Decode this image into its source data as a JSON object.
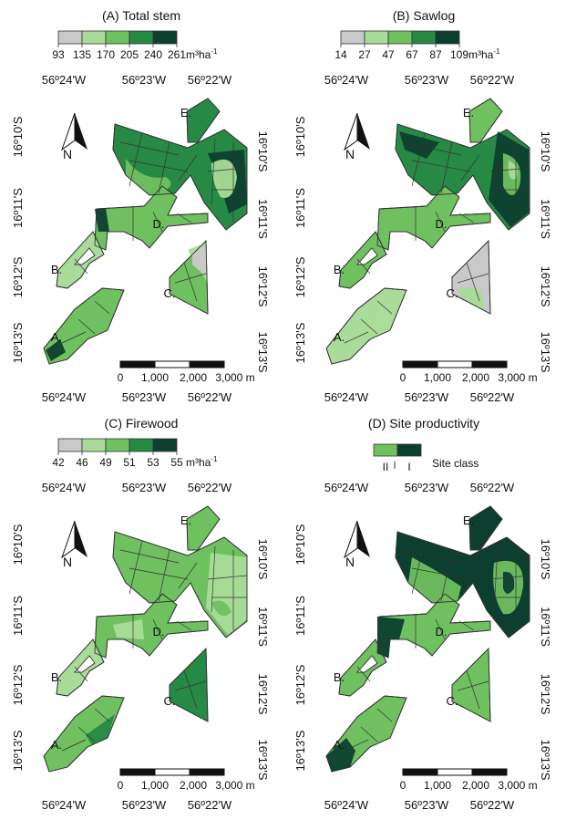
{
  "colors": {
    "c1": "#c9c9c9",
    "c2": "#a9dc98",
    "c3": "#6fc05f",
    "c4": "#268a45",
    "c5": "#0c3f2f",
    "line": "#333333"
  },
  "unit_main": "m³ha",
  "unit_sup": "-1",
  "scalebar": {
    "labels": [
      "0",
      "1,000",
      "2,000",
      "3,000 m"
    ]
  },
  "north_label": "N",
  "stand_labels": [
    "A.",
    "B.",
    "C.",
    "D.",
    "E."
  ],
  "panels": [
    {
      "title": "(A) Total stem",
      "legend_values": [
        "93",
        "135",
        "170",
        "205",
        "240",
        "261"
      ],
      "legend_type": "continuous",
      "lon_top": [
        "56º24'W",
        "56º23'W",
        "56º22'W"
      ],
      "lon_bottom": [
        "56º24'W",
        "56º23'W",
        "56º22'W"
      ],
      "lat_left": [
        "16º10'S",
        "16º11'S",
        "16º12'S",
        "16º13'S"
      ],
      "lat_right": [
        "16º10'S",
        "16º11'S",
        "16º12'S",
        "16º13'S"
      ]
    },
    {
      "title": "(B) Sawlog",
      "legend_values": [
        "14",
        "27",
        "47",
        "67",
        "87",
        "109"
      ],
      "legend_type": "continuous",
      "lon_top": [
        "56º24'W",
        "56º23'W",
        "56º22'W"
      ],
      "lon_bottom": [
        "56º24'W",
        "56º23'W",
        "56º22'W"
      ],
      "lat_left": [
        "16º10'S",
        "16º11'S",
        "16º12'S",
        "16º13'S"
      ],
      "lat_right": [
        "16º10'S",
        "16º11'S",
        "16º12'S",
        "16º13'S"
      ]
    },
    {
      "title": "(C) Firewood",
      "legend_values": [
        "42",
        "46",
        "49",
        "51",
        "53",
        "55"
      ],
      "legend_type": "continuous",
      "lon_top": [
        "56º24'W",
        "56º23'W",
        "56º22'W"
      ],
      "lon_bottom": [
        "56º24'W",
        "56º23'W",
        "56º22'W"
      ],
      "lat_left": [
        "16º10'S",
        "16º11'S",
        "16º12'S",
        "16º13'S"
      ],
      "lat_right": [
        "16º10'S",
        "16º11'S",
        "16º12'S",
        "16º13'S"
      ]
    },
    {
      "title": "(D) Site productivity",
      "legend_values": [
        "II",
        "I"
      ],
      "legend_type": "site",
      "legend_unit": "Site class",
      "lon_top": [
        "56º24'W",
        "56º23'W",
        "56º22'W"
      ],
      "lon_bottom": [
        "56º24'W",
        "56º23'W",
        "56º22'W"
      ],
      "lat_left": [
        "16º10'S",
        "16º11'S",
        "16º12'S",
        "16º13'S"
      ],
      "lat_right": [
        "16º10'S",
        "16º11'S",
        "16º12'S",
        "16º13'S"
      ]
    }
  ]
}
